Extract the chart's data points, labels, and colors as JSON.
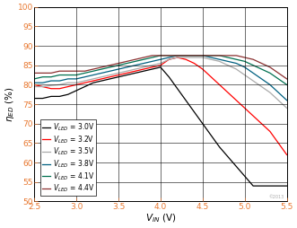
{
  "xlim": [
    2.5,
    5.5
  ],
  "ylim": [
    50,
    100
  ],
  "xticks": [
    2.5,
    3.0,
    3.5,
    4.0,
    4.5,
    5.0,
    5.5
  ],
  "yticks": [
    50,
    55,
    60,
    65,
    70,
    75,
    80,
    85,
    90,
    95,
    100
  ],
  "series": [
    {
      "label": "3.0V",
      "color": "#000000",
      "x": [
        2.5,
        2.6,
        2.7,
        2.8,
        2.9,
        3.0,
        3.1,
        3.2,
        3.3,
        3.4,
        3.5,
        3.6,
        3.7,
        3.8,
        3.9,
        4.0,
        4.1,
        4.2,
        4.3,
        4.4,
        4.5,
        4.6,
        4.7,
        4.8,
        4.9,
        5.0,
        5.1,
        5.2,
        5.3,
        5.4,
        5.5
      ],
      "y": [
        76.5,
        76.5,
        77.0,
        77.0,
        77.5,
        78.5,
        79.5,
        80.5,
        81.0,
        81.5,
        82.0,
        82.5,
        83.0,
        83.5,
        84.0,
        84.5,
        82.0,
        79.0,
        76.0,
        73.0,
        70.0,
        67.0,
        64.0,
        61.5,
        59.0,
        56.5,
        54.0,
        54.0,
        54.0,
        54.0,
        54.0
      ]
    },
    {
      "label": "3.2V",
      "color": "#ff0000",
      "x": [
        2.5,
        2.6,
        2.7,
        2.8,
        2.9,
        3.0,
        3.1,
        3.2,
        3.3,
        3.4,
        3.5,
        3.6,
        3.7,
        3.8,
        3.9,
        4.0,
        4.1,
        4.2,
        4.3,
        4.4,
        4.5,
        4.6,
        4.7,
        4.8,
        4.9,
        5.0,
        5.1,
        5.2,
        5.3,
        5.4,
        5.5
      ],
      "y": [
        80.0,
        79.5,
        79.0,
        79.0,
        79.5,
        80.0,
        80.5,
        81.0,
        81.5,
        82.0,
        82.5,
        83.0,
        83.5,
        84.0,
        84.5,
        85.0,
        86.5,
        87.0,
        86.5,
        85.5,
        84.0,
        82.0,
        80.0,
        78.0,
        76.0,
        74.0,
        72.0,
        70.0,
        68.0,
        65.0,
        62.0
      ]
    },
    {
      "label": "3.5V",
      "color": "#aaaaaa",
      "x": [
        2.5,
        2.6,
        2.7,
        2.8,
        2.9,
        3.0,
        3.1,
        3.2,
        3.3,
        3.4,
        3.5,
        3.6,
        3.7,
        3.8,
        3.9,
        4.0,
        4.1,
        4.2,
        4.3,
        4.4,
        4.5,
        4.6,
        4.7,
        4.8,
        4.9,
        5.0,
        5.1,
        5.2,
        5.3,
        5.4,
        5.5
      ],
      "y": [
        79.5,
        79.5,
        79.8,
        80.0,
        80.5,
        80.5,
        81.0,
        81.5,
        82.0,
        82.5,
        83.0,
        83.5,
        84.0,
        84.5,
        85.0,
        85.5,
        86.5,
        87.0,
        87.0,
        87.0,
        87.0,
        86.5,
        86.0,
        85.0,
        84.0,
        82.5,
        81.0,
        79.5,
        78.0,
        76.0,
        74.0
      ]
    },
    {
      "label": "3.8V",
      "color": "#006080",
      "x": [
        2.5,
        2.6,
        2.7,
        2.8,
        2.9,
        3.0,
        3.1,
        3.2,
        3.3,
        3.4,
        3.5,
        3.6,
        3.7,
        3.8,
        3.9,
        4.0,
        4.1,
        4.2,
        4.3,
        4.4,
        4.5,
        4.6,
        4.7,
        4.8,
        4.9,
        5.0,
        5.1,
        5.2,
        5.3,
        5.4,
        5.5
      ],
      "y": [
        80.5,
        80.5,
        81.0,
        81.0,
        81.5,
        81.5,
        82.0,
        82.5,
        83.0,
        83.5,
        84.0,
        84.5,
        85.0,
        85.5,
        86.0,
        86.5,
        87.0,
        87.5,
        87.5,
        87.5,
        87.5,
        87.0,
        86.5,
        86.0,
        85.5,
        84.5,
        83.0,
        81.5,
        80.0,
        78.0,
        76.0
      ]
    },
    {
      "label": "4.1V",
      "color": "#007050",
      "x": [
        2.5,
        2.6,
        2.7,
        2.8,
        2.9,
        3.0,
        3.1,
        3.2,
        3.3,
        3.4,
        3.5,
        3.6,
        3.7,
        3.8,
        3.9,
        4.0,
        4.1,
        4.2,
        4.3,
        4.4,
        4.5,
        4.6,
        4.7,
        4.8,
        4.9,
        5.0,
        5.1,
        5.2,
        5.3,
        5.4,
        5.5
      ],
      "y": [
        81.5,
        82.0,
        82.0,
        82.5,
        82.5,
        82.5,
        83.0,
        83.5,
        84.0,
        84.5,
        85.0,
        85.5,
        86.0,
        86.5,
        87.0,
        87.5,
        87.5,
        87.5,
        87.5,
        87.5,
        87.5,
        87.5,
        87.5,
        87.0,
        86.5,
        86.0,
        85.0,
        84.0,
        83.0,
        81.5,
        80.0
      ]
    },
    {
      "label": "4.4V",
      "color": "#8b3030",
      "x": [
        2.5,
        2.6,
        2.7,
        2.8,
        2.9,
        3.0,
        3.1,
        3.2,
        3.3,
        3.4,
        3.5,
        3.6,
        3.7,
        3.8,
        3.9,
        4.0,
        4.1,
        4.2,
        4.3,
        4.4,
        4.5,
        4.6,
        4.7,
        4.8,
        4.9,
        5.0,
        5.1,
        5.2,
        5.3,
        5.4,
        5.5
      ],
      "y": [
        83.0,
        83.0,
        83.0,
        83.5,
        83.5,
        83.5,
        83.5,
        84.0,
        84.5,
        85.0,
        85.5,
        86.0,
        86.5,
        87.0,
        87.5,
        87.5,
        87.5,
        87.5,
        87.5,
        87.5,
        87.5,
        87.5,
        87.5,
        87.5,
        87.5,
        87.0,
        86.5,
        85.5,
        84.5,
        83.0,
        81.5
      ]
    }
  ],
  "tick_color": "#e87830",
  "watermark": "©2013",
  "background_color": "#ffffff",
  "grid_color": "#000000",
  "font_size": 6.5,
  "legend_font_size": 5.5
}
